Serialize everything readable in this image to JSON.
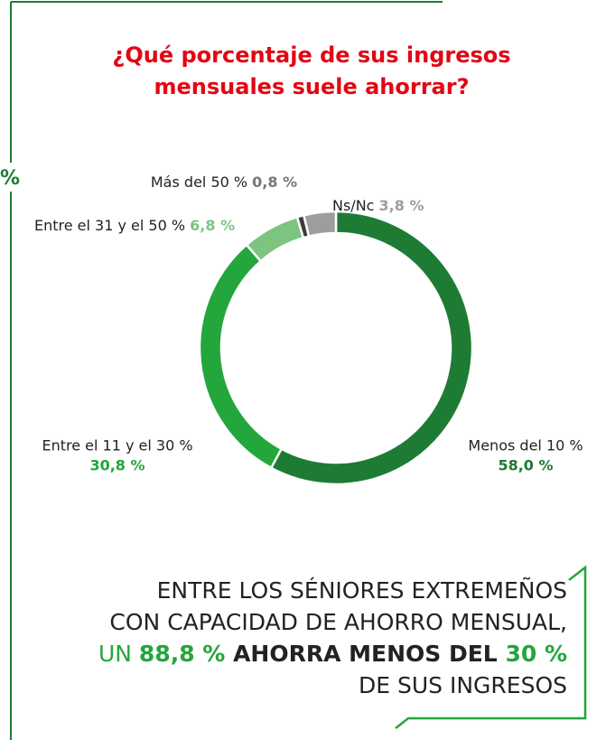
{
  "chart_data": {
    "type": "donut",
    "title_lines": [
      "¿Qué porcentaje de sus ingresos",
      "mensuales suele ahorrar?"
    ],
    "fragment": "%",
    "categories": [
      "Menos del 10 %",
      "Entre el 11 y el 30 %",
      "Entre el 31 y el 50 %",
      "Más del 50 %",
      "Ns/Nc"
    ],
    "values": [
      58.0,
      30.8,
      6.8,
      0.8,
      3.8
    ],
    "value_labels": [
      "58,0 %",
      "30,8 %",
      "6,8 %",
      "0,8 %",
      "3,8 %"
    ],
    "colors": [
      "#1e7b34",
      "#23a63c",
      "#7cc47f",
      "#3d3d3d",
      "#9d9d9d"
    ],
    "annotation": {
      "lines": [
        "ENTRE LOS SÉNIORES EXTREMEÑOS",
        "CON CAPACIDAD DE AHORRO MENSUAL,"
      ],
      "highlight": [
        "UN ",
        "88,8 %",
        " AHORRA MENOS DEL ",
        "30 %"
      ],
      "last": "DE SUS INGRESOS"
    }
  }
}
